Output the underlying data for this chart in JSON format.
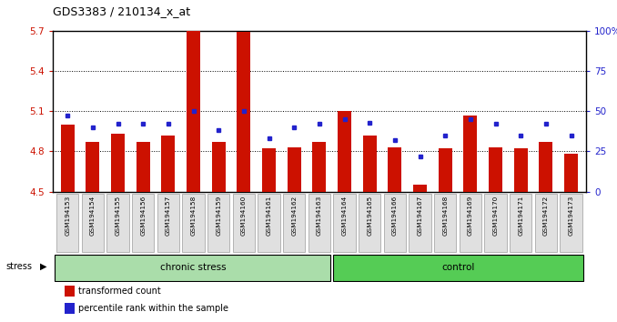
{
  "title": "GDS3383 / 210134_x_at",
  "samples": [
    "GSM194153",
    "GSM194154",
    "GSM194155",
    "GSM194156",
    "GSM194157",
    "GSM194158",
    "GSM194159",
    "GSM194160",
    "GSM194161",
    "GSM194162",
    "GSM194163",
    "GSM194164",
    "GSM194165",
    "GSM194166",
    "GSM194167",
    "GSM194168",
    "GSM194169",
    "GSM194170",
    "GSM194171",
    "GSM194172",
    "GSM194173"
  ],
  "red_values": [
    5.0,
    4.87,
    4.93,
    4.87,
    4.92,
    5.7,
    4.87,
    5.69,
    4.82,
    4.83,
    4.87,
    5.1,
    4.92,
    4.83,
    4.55,
    4.82,
    5.07,
    4.83,
    4.82,
    4.87,
    4.78
  ],
  "blue_values": [
    47,
    40,
    42,
    42,
    42,
    50,
    38,
    50,
    33,
    40,
    42,
    45,
    43,
    32,
    22,
    35,
    45,
    42,
    35,
    42,
    35
  ],
  "y_min": 4.5,
  "y_max": 5.7,
  "y_ticks_left": [
    4.5,
    4.8,
    5.1,
    5.4,
    5.7
  ],
  "y_ticks_right": [
    0,
    25,
    50,
    75,
    100
  ],
  "chronic_stress_count": 11,
  "control_count": 10,
  "bar_color": "#cc1100",
  "dot_color": "#2222cc",
  "chronic_stress_color": "#aaddaa",
  "control_color": "#55cc55",
  "bg_color": "#e0e0e0",
  "grid_lines": [
    4.8,
    5.1,
    5.4
  ]
}
